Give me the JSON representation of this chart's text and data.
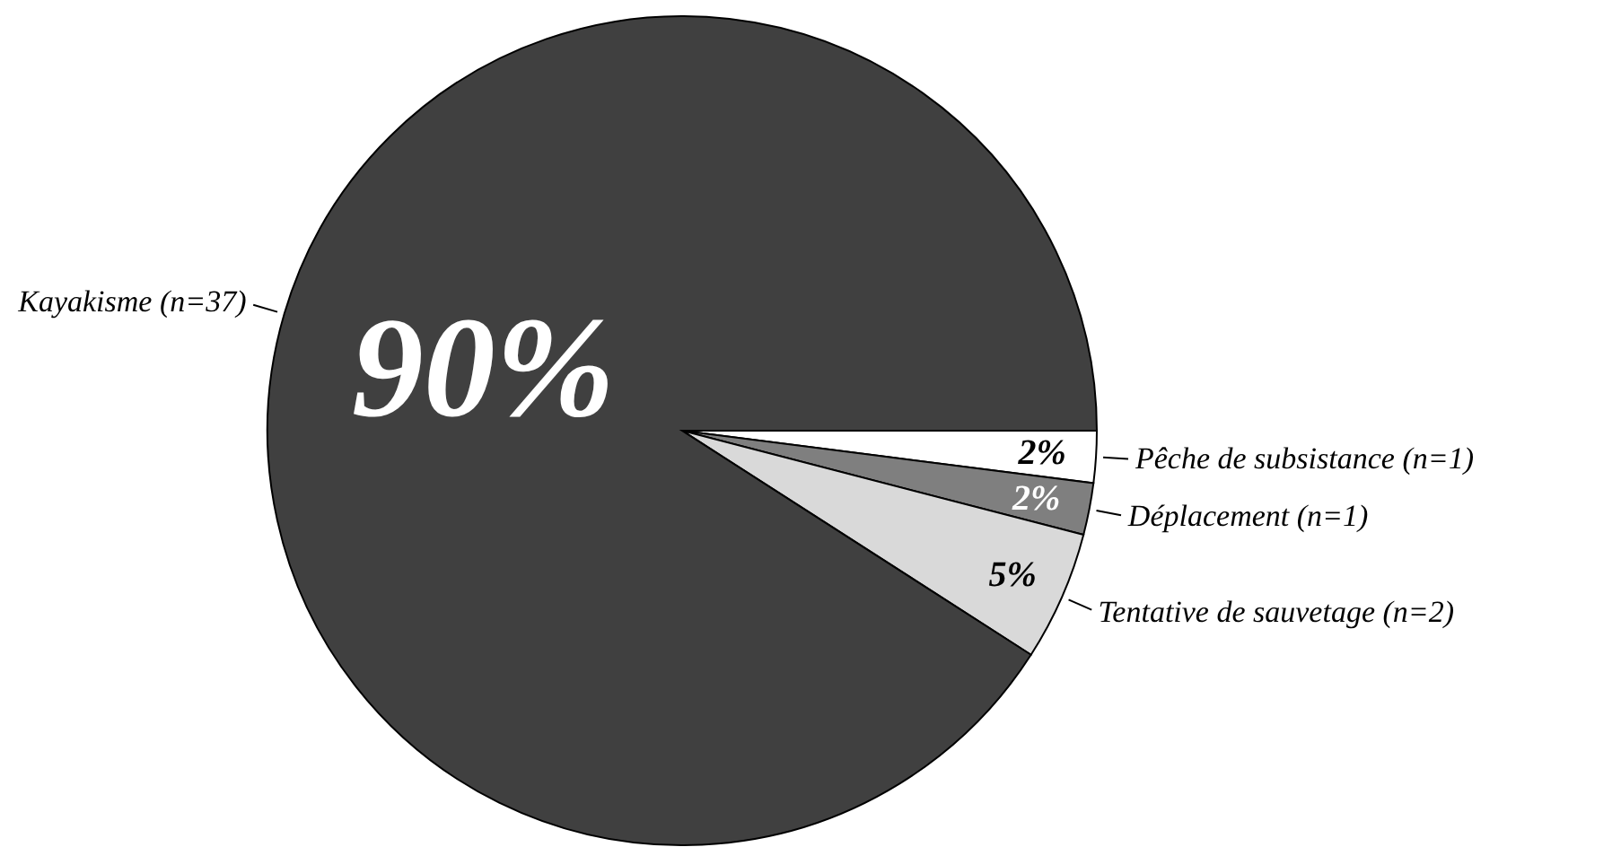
{
  "chart_data": {
    "type": "pie",
    "categories": [
      "Pêche de subsistance (n=1)",
      "Déplacement (n=1)",
      "Tentative de sauvetage (n=2)",
      "Kayakisme (n=37)"
    ],
    "values": [
      2,
      2,
      5,
      90
    ],
    "colors": [
      "#ffffff",
      "#7f7f7f",
      "#d9d9d9",
      "#404040"
    ],
    "value_labels": [
      "2%",
      "2%",
      "5%",
      "90%"
    ]
  }
}
